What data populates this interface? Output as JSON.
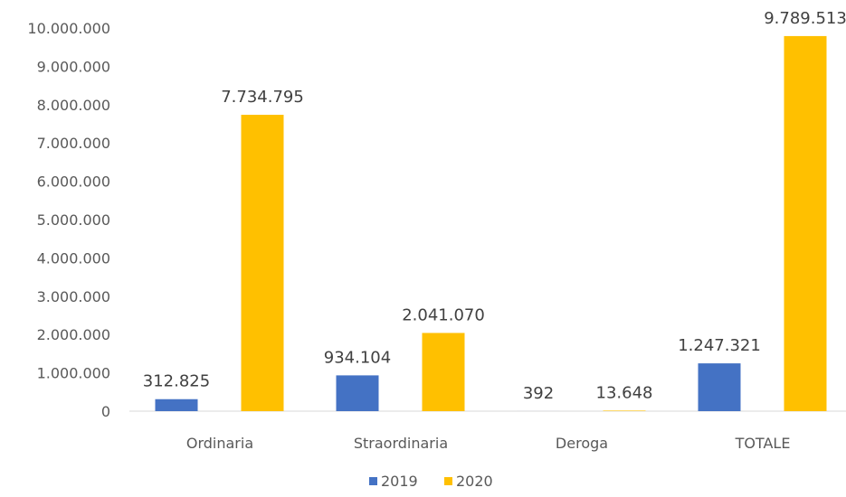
{
  "chart_data": {
    "type": "bar",
    "categories": [
      "Ordinaria",
      "Straordinaria",
      "Deroga",
      "TOTALE"
    ],
    "series": [
      {
        "name": "2019",
        "color": "#4472C4",
        "values": [
          312825,
          934104,
          392,
          1247321
        ],
        "labels": [
          "312.825",
          "934.104",
          "392",
          "1.247.321"
        ]
      },
      {
        "name": "2020",
        "color": "#FFC000",
        "values": [
          7734795,
          2041070,
          13648,
          9789513
        ],
        "labels": [
          "7.734.795",
          "2.041.070",
          "13.648",
          "9.789.513"
        ]
      }
    ],
    "yticks": [
      0,
      1000000,
      2000000,
      3000000,
      4000000,
      5000000,
      6000000,
      7000000,
      8000000,
      9000000,
      10000000
    ],
    "ytick_labels": [
      "0",
      "1.000.000",
      "2.000.000",
      "3.000.000",
      "4.000.000",
      "5.000.000",
      "6.000.000",
      "7.000.000",
      "8.000.000",
      "9.000.000",
      "10.000.000"
    ],
    "ylim": [
      0,
      10000000
    ],
    "grid": false,
    "legend_position": "bottom",
    "title": "",
    "xlabel": "",
    "ylabel": ""
  }
}
